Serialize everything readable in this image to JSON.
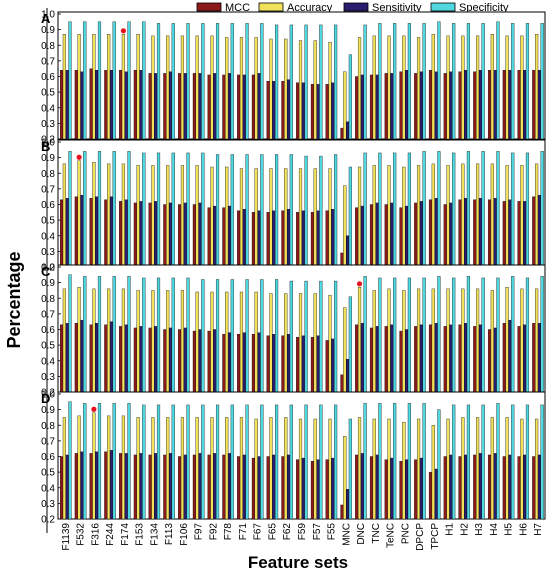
{
  "chart_data": {
    "type": "bar",
    "xlabel": "Feature sets",
    "ylabel": "Percentage",
    "ylim": [
      0.2,
      1.0
    ],
    "yticks": [
      "0.2",
      "0.3",
      "0.4",
      "0.5",
      "0.6",
      "0.7",
      "0.8",
      "0.9",
      "1.0"
    ],
    "categories": [
      "F1139",
      "F532",
      "F316",
      "F244",
      "F174",
      "F153",
      "F134",
      "F113",
      "F106",
      "F97",
      "F92",
      "F78",
      "F71",
      "F67",
      "F65",
      "F62",
      "F59",
      "F57",
      "F55",
      "MNC",
      "DNC",
      "TNC",
      "TeNC",
      "PNC",
      "DPCP",
      "TPCP",
      "H1",
      "H2",
      "H3",
      "H4",
      "H5",
      "H6",
      "H7"
    ],
    "legend": [
      {
        "name": "MCC",
        "color": "#8b1a1a"
      },
      {
        "name": "Accuracy",
        "color": "#f2e15a"
      },
      {
        "name": "Sensitivity",
        "color": "#2a1d6e"
      },
      {
        "name": "Specificity",
        "color": "#4fd8e0"
      }
    ],
    "panels": [
      {
        "label": "A",
        "star_category": "F174",
        "series": [
          {
            "name": "MCC",
            "values": [
              0.64,
              0.64,
              0.65,
              0.64,
              0.64,
              0.64,
              0.62,
              0.62,
              0.62,
              0.62,
              0.61,
              0.61,
              0.61,
              0.61,
              0.57,
              0.57,
              0.56,
              0.55,
              0.55,
              0.27,
              0.6,
              0.61,
              0.62,
              0.63,
              0.62,
              0.64,
              0.62,
              0.63,
              0.63,
              0.64,
              0.64,
              0.64,
              0.64
            ]
          },
          {
            "name": "Accuracy",
            "values": [
              0.87,
              0.87,
              0.87,
              0.87,
              0.87,
              0.87,
              0.86,
              0.86,
              0.86,
              0.86,
              0.86,
              0.85,
              0.85,
              0.85,
              0.84,
              0.84,
              0.83,
              0.83,
              0.82,
              0.63,
              0.85,
              0.86,
              0.86,
              0.86,
              0.85,
              0.87,
              0.86,
              0.86,
              0.86,
              0.87,
              0.86,
              0.86,
              0.87
            ]
          },
          {
            "name": "Sensitivity",
            "values": [
              0.64,
              0.63,
              0.64,
              0.64,
              0.63,
              0.64,
              0.62,
              0.63,
              0.62,
              0.62,
              0.62,
              0.62,
              0.61,
              0.62,
              0.57,
              0.58,
              0.56,
              0.55,
              0.56,
              0.31,
              0.61,
              0.61,
              0.62,
              0.64,
              0.63,
              0.63,
              0.63,
              0.64,
              0.64,
              0.64,
              0.64,
              0.64,
              0.64
            ]
          },
          {
            "name": "Specificity",
            "values": [
              0.95,
              0.95,
              0.95,
              0.95,
              0.95,
              0.95,
              0.94,
              0.94,
              0.94,
              0.94,
              0.94,
              0.94,
              0.94,
              0.94,
              0.93,
              0.93,
              0.93,
              0.93,
              0.93,
              0.74,
              0.93,
              0.94,
              0.94,
              0.94,
              0.94,
              0.95,
              0.94,
              0.94,
              0.94,
              0.95,
              0.94,
              0.94,
              0.94
            ]
          }
        ]
      },
      {
        "label": "B",
        "star_category": "F532",
        "series": [
          {
            "name": "MCC",
            "values": [
              0.63,
              0.65,
              0.64,
              0.63,
              0.62,
              0.61,
              0.61,
              0.6,
              0.6,
              0.6,
              0.58,
              0.58,
              0.56,
              0.55,
              0.55,
              0.56,
              0.55,
              0.55,
              0.56,
              0.29,
              0.58,
              0.6,
              0.6,
              0.58,
              0.61,
              0.63,
              0.6,
              0.63,
              0.63,
              0.63,
              0.62,
              0.62,
              0.65
            ]
          },
          {
            "name": "Accuracy",
            "values": [
              0.86,
              0.88,
              0.87,
              0.86,
              0.86,
              0.85,
              0.85,
              0.85,
              0.85,
              0.85,
              0.84,
              0.84,
              0.83,
              0.83,
              0.83,
              0.83,
              0.83,
              0.83,
              0.83,
              0.72,
              0.84,
              0.85,
              0.85,
              0.84,
              0.85,
              0.86,
              0.85,
              0.86,
              0.86,
              0.86,
              0.85,
              0.85,
              0.86
            ]
          },
          {
            "name": "Sensitivity",
            "values": [
              0.64,
              0.66,
              0.65,
              0.65,
              0.63,
              0.62,
              0.62,
              0.61,
              0.61,
              0.61,
              0.59,
              0.59,
              0.57,
              0.56,
              0.56,
              0.57,
              0.56,
              0.56,
              0.57,
              0.4,
              0.59,
              0.61,
              0.61,
              0.59,
              0.62,
              0.64,
              0.61,
              0.64,
              0.64,
              0.64,
              0.63,
              0.62,
              0.66
            ]
          },
          {
            "name": "Specificity",
            "values": [
              0.94,
              0.94,
              0.94,
              0.94,
              0.94,
              0.93,
              0.93,
              0.93,
              0.93,
              0.93,
              0.92,
              0.92,
              0.92,
              0.92,
              0.92,
              0.92,
              0.91,
              0.91,
              0.92,
              0.84,
              0.93,
              0.93,
              0.93,
              0.93,
              0.94,
              0.94,
              0.93,
              0.94,
              0.94,
              0.94,
              0.93,
              0.93,
              0.94
            ]
          }
        ]
      },
      {
        "label": "C",
        "star_category": "DNC",
        "series": [
          {
            "name": "MCC",
            "values": [
              0.63,
              0.64,
              0.63,
              0.63,
              0.62,
              0.61,
              0.61,
              0.6,
              0.6,
              0.59,
              0.59,
              0.57,
              0.57,
              0.57,
              0.56,
              0.56,
              0.55,
              0.55,
              0.53,
              0.31,
              0.63,
              0.61,
              0.62,
              0.59,
              0.62,
              0.63,
              0.62,
              0.63,
              0.62,
              0.6,
              0.64,
              0.62,
              0.64
            ]
          },
          {
            "name": "Accuracy",
            "values": [
              0.86,
              0.87,
              0.86,
              0.86,
              0.86,
              0.85,
              0.85,
              0.85,
              0.85,
              0.84,
              0.84,
              0.84,
              0.84,
              0.84,
              0.83,
              0.83,
              0.83,
              0.83,
              0.82,
              0.74,
              0.87,
              0.85,
              0.86,
              0.85,
              0.86,
              0.86,
              0.86,
              0.86,
              0.86,
              0.85,
              0.87,
              0.86,
              0.86
            ]
          },
          {
            "name": "Sensitivity",
            "values": [
              0.64,
              0.66,
              0.64,
              0.65,
              0.63,
              0.62,
              0.62,
              0.61,
              0.61,
              0.6,
              0.6,
              0.58,
              0.58,
              0.58,
              0.57,
              0.57,
              0.56,
              0.56,
              0.54,
              0.41,
              0.64,
              0.62,
              0.63,
              0.6,
              0.63,
              0.64,
              0.63,
              0.64,
              0.63,
              0.61,
              0.66,
              0.63,
              0.64
            ]
          },
          {
            "name": "Specificity",
            "values": [
              0.95,
              0.94,
              0.94,
              0.94,
              0.94,
              0.93,
              0.93,
              0.93,
              0.93,
              0.92,
              0.92,
              0.92,
              0.92,
              0.92,
              0.92,
              0.91,
              0.91,
              0.91,
              0.91,
              0.81,
              0.94,
              0.93,
              0.93,
              0.93,
              0.93,
              0.94,
              0.93,
              0.94,
              0.93,
              0.93,
              0.94,
              0.93,
              0.94
            ]
          }
        ]
      },
      {
        "label": "D",
        "star_category": "F316",
        "series": [
          {
            "name": "MCC",
            "values": [
              0.6,
              0.62,
              0.62,
              0.63,
              0.62,
              0.61,
              0.61,
              0.61,
              0.6,
              0.61,
              0.61,
              0.61,
              0.6,
              0.59,
              0.6,
              0.6,
              0.58,
              0.57,
              0.58,
              0.29,
              0.61,
              0.6,
              0.58,
              0.57,
              0.58,
              0.5,
              0.6,
              0.6,
              0.61,
              0.61,
              0.6,
              0.6,
              0.6
            ]
          },
          {
            "name": "Accuracy",
            "values": [
              0.85,
              0.86,
              0.88,
              0.86,
              0.86,
              0.85,
              0.85,
              0.85,
              0.85,
              0.85,
              0.85,
              0.85,
              0.85,
              0.84,
              0.85,
              0.85,
              0.84,
              0.84,
              0.84,
              0.73,
              0.85,
              0.84,
              0.84,
              0.82,
              0.84,
              0.8,
              0.84,
              0.85,
              0.85,
              0.85,
              0.85,
              0.84,
              0.84
            ]
          },
          {
            "name": "Sensitivity",
            "values": [
              0.61,
              0.63,
              0.63,
              0.64,
              0.62,
              0.62,
              0.62,
              0.62,
              0.61,
              0.62,
              0.62,
              0.62,
              0.61,
              0.6,
              0.61,
              0.61,
              0.59,
              0.58,
              0.59,
              0.39,
              0.62,
              0.61,
              0.59,
              0.58,
              0.59,
              0.52,
              0.61,
              0.61,
              0.62,
              0.62,
              0.61,
              0.61,
              0.61
            ]
          },
          {
            "name": "Specificity",
            "values": [
              0.95,
              0.94,
              0.94,
              0.94,
              0.94,
              0.93,
              0.93,
              0.93,
              0.93,
              0.93,
              0.93,
              0.93,
              0.93,
              0.93,
              0.93,
              0.93,
              0.93,
              0.93,
              0.93,
              0.84,
              0.94,
              0.94,
              0.94,
              0.94,
              0.94,
              0.9,
              0.93,
              0.93,
              0.93,
              0.94,
              0.93,
              0.93,
              0.93
            ]
          }
        ]
      }
    ]
  }
}
